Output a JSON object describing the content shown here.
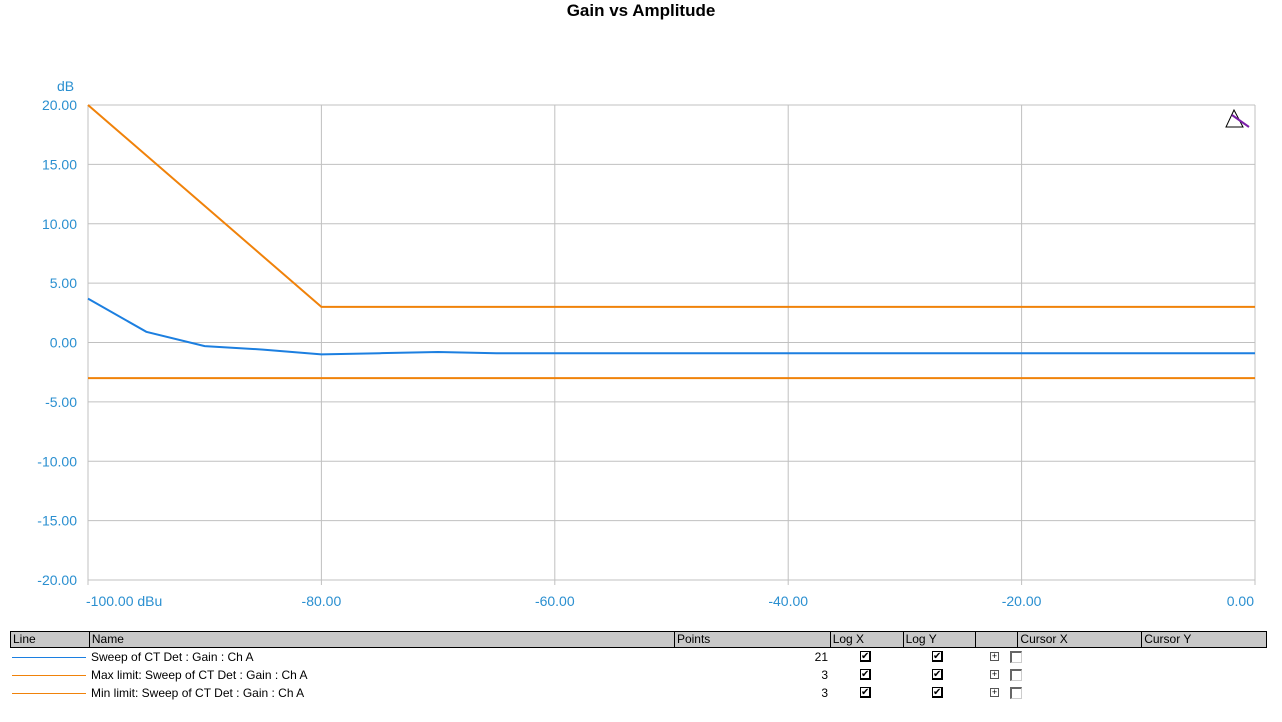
{
  "chart_data": {
    "type": "line",
    "title": "Gain vs Amplitude",
    "ylabel": "dB",
    "x_tick_labels": [
      "-100.00 dBu",
      "-80.00",
      "-60.00",
      "-40.00",
      "-20.00",
      "0.00"
    ],
    "y_tick_labels": [
      "20.00",
      "15.00",
      "10.00",
      "5.00",
      "0.00",
      "-5.00",
      "-10.00",
      "-15.00",
      "-20.00"
    ],
    "xlim": [
      -100,
      0
    ],
    "ylim": [
      -20,
      20
    ],
    "x_ticks": [
      -100,
      -80,
      -60,
      -40,
      -20,
      0
    ],
    "y_ticks": [
      20,
      15,
      10,
      5,
      0,
      -5,
      -10,
      -15,
      -20
    ],
    "grid": true,
    "series": [
      {
        "name": "Sweep of CT Det : Gain : Ch A",
        "color": "#1c7fe0",
        "x": [
          -100,
          -95,
          -90,
          -85,
          -80,
          -75,
          -70,
          -65,
          -60,
          -55,
          -50,
          -45,
          -40,
          -35,
          -30,
          -25,
          -20,
          -15,
          -10,
          -5,
          0
        ],
        "y": [
          3.7,
          0.9,
          -0.3,
          -0.6,
          -1.0,
          -0.9,
          -0.8,
          -0.9,
          -0.9,
          -0.9,
          -0.9,
          -0.9,
          -0.9,
          -0.9,
          -0.9,
          -0.9,
          -0.9,
          -0.9,
          -0.9,
          -0.9,
          -0.9
        ]
      },
      {
        "name": "Max limit: Sweep of CT Det : Gain : Ch A",
        "color": "#f0820a",
        "x": [
          -100,
          -80,
          0
        ],
        "y": [
          20,
          3,
          3
        ]
      },
      {
        "name": "Min limit: Sweep of CT Det : Gain : Ch A",
        "color": "#f0820a",
        "x": [
          -100,
          -80,
          0
        ],
        "y": [
          -3,
          -3,
          -3
        ]
      }
    ]
  },
  "legend": {
    "headers": {
      "line": "Line",
      "name": "Name",
      "points": "Points",
      "logx": "Log X",
      "logy": "Log Y",
      "blank": "",
      "cursorx": "Cursor X",
      "cursory": "Cursor Y"
    },
    "rows": [
      {
        "name": "Sweep of CT Det : Gain : Ch A",
        "points": "21",
        "color": "#1c7fe0",
        "logx": true,
        "logy": true,
        "cursor": false
      },
      {
        "name": "Max limit: Sweep of CT Det : Gain : Ch A",
        "points": "3",
        "color": "#f0820a",
        "logx": true,
        "logy": true,
        "cursor": false
      },
      {
        "name": "Min limit: Sweep of CT Det : Gain : Ch A",
        "points": "3",
        "color": "#f0820a",
        "logx": true,
        "logy": true,
        "cursor": false
      }
    ]
  },
  "icons": {
    "corner_tool": "triangle-cursor-icon"
  }
}
